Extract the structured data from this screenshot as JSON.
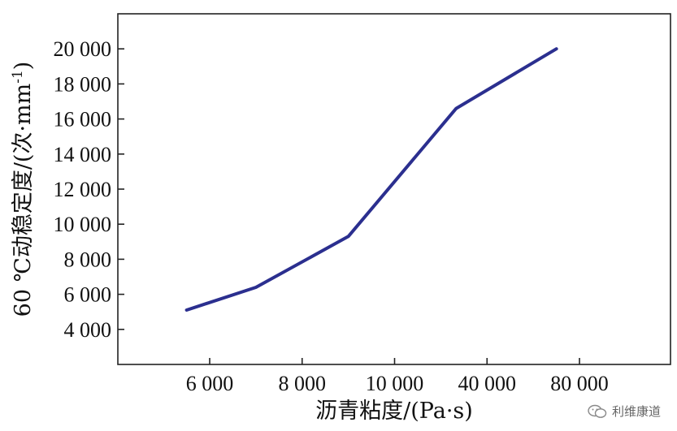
{
  "chart_data": {
    "type": "line",
    "x": [
      "5 500",
      "7 000",
      "9 000",
      "30 000",
      "70 000"
    ],
    "xticks": [
      "6 000",
      "8 000",
      "10 000",
      "40 000",
      "80 000"
    ],
    "y": [
      5100,
      6400,
      9300,
      16600,
      20000
    ],
    "yticks": [
      "4 000",
      "6 000",
      "8 000",
      "10 000",
      "12 000",
      "14 000",
      "16 000",
      "18 000",
      "20 000"
    ],
    "ylim": [
      2000,
      22000
    ],
    "xlabel": "沥青粘度/(Pa·s)",
    "ylabel": "60 ℃动稳定度/(次·mm",
    "ylabel_sup": "-1",
    "ylabel_close": ")",
    "line_color": "#2b2f8f",
    "grid": false
  },
  "watermark": {
    "text": "利维康道",
    "icon": "wechat-icon"
  }
}
